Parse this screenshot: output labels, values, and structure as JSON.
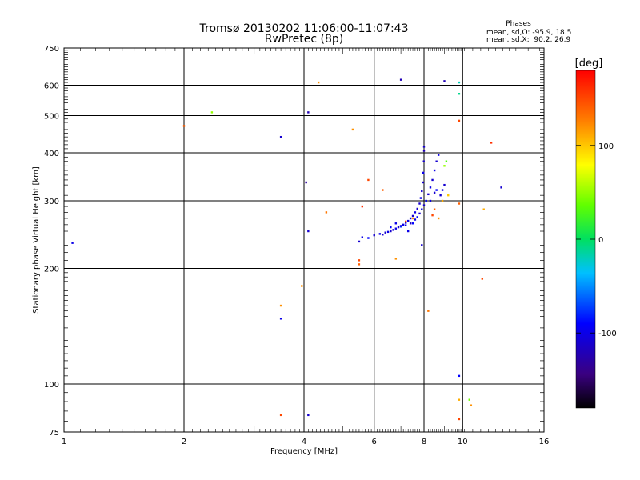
{
  "chart_data": {
    "type": "scatter",
    "title": "Tromsø 20130202 11:06:00-11:07:43",
    "subtitle": "RwPretec (8p)",
    "xlabel": "Frequency [MHz]",
    "ylabel": "Stationary phase Virtual Height [km]",
    "xscale": "log",
    "yscale": "log",
    "xlim": [
      1,
      16
    ],
    "ylim": [
      75,
      750
    ],
    "xticks": [
      1,
      2,
      4,
      6,
      8,
      10,
      16
    ],
    "yticks": [
      75,
      100,
      200,
      300,
      400,
      500,
      600,
      750
    ],
    "grid": true,
    "legend": {
      "title": "Phases",
      "line1": "mean, sd,O: -95.9, 18.5",
      "line2": "mean, sd,X:  90.2, 26.9",
      "placement": "top-right"
    },
    "colorbar": {
      "label": "[deg]",
      "min": -180,
      "max": 180,
      "ticks": [
        100,
        0,
        -100
      ]
    },
    "series": [
      {
        "points": [
          [
            1.05,
            233,
            -100
          ],
          [
            3.5,
            440,
            -110
          ],
          [
            3.5,
            148,
            -100
          ],
          [
            4.05,
            335,
            -130
          ],
          [
            4.1,
            510,
            -120
          ],
          [
            4.1,
            250,
            -110
          ],
          [
            4.1,
            83,
            -110
          ],
          [
            7.0,
            620,
            -120
          ],
          [
            9.0,
            615,
            -120
          ],
          [
            9.8,
            610,
            -20
          ],
          [
            9.8,
            570,
            -10
          ],
          [
            9.8,
            105,
            -90
          ],
          [
            12.5,
            325,
            -110
          ],
          [
            5.5,
            235,
            -110
          ],
          [
            5.6,
            241,
            -100
          ],
          [
            5.8,
            240,
            -90
          ],
          [
            6.0,
            244,
            -110
          ],
          [
            6.2,
            246,
            -100
          ],
          [
            6.3,
            245,
            -110
          ],
          [
            6.4,
            248,
            -110
          ],
          [
            6.5,
            249,
            -100
          ],
          [
            6.6,
            250,
            -110
          ],
          [
            6.7,
            252,
            -110
          ],
          [
            6.8,
            254,
            -100
          ],
          [
            6.9,
            256,
            -110
          ],
          [
            7.0,
            258,
            -110
          ],
          [
            7.1,
            260,
            -100
          ],
          [
            7.2,
            263,
            -110
          ],
          [
            7.3,
            266,
            -100
          ],
          [
            7.4,
            270,
            -110
          ],
          [
            7.5,
            274,
            -110
          ],
          [
            7.6,
            280,
            -100
          ],
          [
            7.7,
            286,
            -110
          ],
          [
            7.8,
            295,
            -110
          ],
          [
            7.85,
            305,
            -100
          ],
          [
            7.9,
            318,
            -110
          ],
          [
            7.95,
            335,
            -110
          ],
          [
            7.97,
            355,
            -100
          ],
          [
            7.99,
            380,
            -110
          ],
          [
            8.0,
            405,
            -120
          ],
          [
            8.0,
            415,
            -110
          ],
          [
            7.5,
            262,
            -90
          ],
          [
            7.6,
            268,
            -100
          ],
          [
            7.7,
            272,
            -90
          ],
          [
            7.8,
            278,
            -110
          ],
          [
            7.9,
            285,
            -100
          ],
          [
            8.0,
            292,
            -110
          ],
          [
            8.1,
            300,
            -90
          ],
          [
            8.2,
            312,
            -110
          ],
          [
            8.3,
            325,
            -100
          ],
          [
            8.4,
            340,
            -110
          ],
          [
            8.5,
            360,
            -100
          ],
          [
            8.6,
            380,
            -110
          ],
          [
            8.7,
            395,
            -100
          ],
          [
            8.8,
            310,
            -110
          ],
          [
            8.9,
            320,
            -100
          ],
          [
            9.0,
            330,
            -110
          ],
          [
            7.0,
            257,
            -80
          ],
          [
            7.2,
            259,
            -100
          ],
          [
            7.4,
            262,
            -120
          ],
          [
            6.6,
            256,
            -90
          ],
          [
            6.8,
            262,
            -100
          ],
          [
            7.9,
            230,
            -110
          ],
          [
            7.3,
            250,
            -100
          ],
          [
            8.3,
            300,
            -100
          ],
          [
            8.5,
            315,
            -110
          ],
          [
            8.6,
            320,
            -90
          ]
        ]
      },
      {
        "points": [
          [
            2.0,
            470,
            140
          ],
          [
            2.35,
            510,
            50
          ],
          [
            3.5,
            160,
            120
          ],
          [
            3.5,
            83,
            150
          ],
          [
            3.95,
            180,
            120
          ],
          [
            4.35,
            610,
            120
          ],
          [
            4.55,
            280,
            130
          ],
          [
            5.3,
            460,
            120
          ],
          [
            5.5,
            205,
            140
          ],
          [
            5.5,
            210,
            150
          ],
          [
            5.6,
            290,
            160
          ],
          [
            5.8,
            340,
            150
          ],
          [
            6.3,
            320,
            140
          ],
          [
            6.8,
            212,
            120
          ],
          [
            7.2,
            265,
            150
          ],
          [
            7.5,
            270,
            120
          ],
          [
            8.2,
            155,
            130
          ],
          [
            8.4,
            275,
            150
          ],
          [
            8.5,
            285,
            140
          ],
          [
            8.7,
            270,
            120
          ],
          [
            8.9,
            300,
            110
          ],
          [
            9.2,
            310,
            100
          ],
          [
            9.8,
            485,
            150
          ],
          [
            9.8,
            295,
            140
          ],
          [
            9.8,
            91,
            110
          ],
          [
            9.8,
            81,
            150
          ],
          [
            10.4,
            91,
            40
          ],
          [
            10.5,
            88,
            120
          ],
          [
            11.2,
            188,
            150
          ],
          [
            11.3,
            285,
            110
          ],
          [
            11.8,
            425,
            160
          ],
          [
            9.0,
            370,
            50
          ],
          [
            9.1,
            380,
            30
          ]
        ]
      }
    ]
  }
}
